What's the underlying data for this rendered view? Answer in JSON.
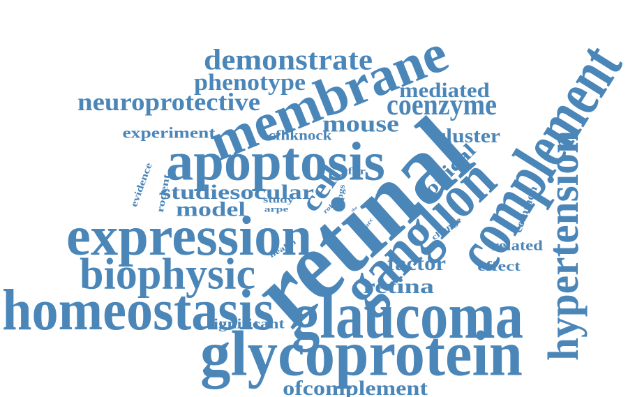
{
  "cloud": {
    "color": "#4b86b9",
    "words": [
      {
        "text": "retinal",
        "weight": 100
      },
      {
        "text": "complement",
        "weight": 88
      },
      {
        "text": "glycoprotein",
        "weight": 84
      },
      {
        "text": "glaucoma",
        "weight": 82
      },
      {
        "text": "homeostasis",
        "weight": 80
      },
      {
        "text": "expression",
        "weight": 76
      },
      {
        "text": "membrane",
        "weight": 72
      },
      {
        "text": "ganglion",
        "weight": 70
      },
      {
        "text": "apoptosis",
        "weight": 68
      },
      {
        "text": "biophysic",
        "weight": 64
      },
      {
        "text": "hypertension",
        "weight": 62
      },
      {
        "text": "demonstrate",
        "weight": 40
      },
      {
        "text": "coenzyme",
        "weight": 40
      },
      {
        "text": "phenotype",
        "weight": 36
      },
      {
        "text": "neuroprotective",
        "weight": 34
      },
      {
        "text": "mediated",
        "weight": 32
      },
      {
        "text": "mouse",
        "weight": 32
      },
      {
        "text": "cell",
        "weight": 34
      },
      {
        "text": "ofcomplement",
        "weight": 30
      },
      {
        "text": "studiesocular",
        "weight": 30
      },
      {
        "text": "model",
        "weight": 30
      },
      {
        "text": "factor",
        "weight": 30
      },
      {
        "text": "retina",
        "weight": 30
      },
      {
        "text": "cluster",
        "weight": 26
      },
      {
        "text": "topical",
        "weight": 26
      },
      {
        "text": "experiment",
        "weight": 22
      },
      {
        "text": "cfhknock",
        "weight": 20
      },
      {
        "text": "related",
        "weight": 20
      },
      {
        "text": "effect",
        "weight": 20
      },
      {
        "text": "significant",
        "weight": 18
      },
      {
        "text": "common",
        "weight": 16
      },
      {
        "text": "evidence",
        "weight": 14
      },
      {
        "text": "rodent",
        "weight": 14
      },
      {
        "text": "study",
        "weight": 12
      },
      {
        "text": "arpe",
        "weight": 12
      },
      {
        "text": "cfhr",
        "weight": 12
      },
      {
        "text": "tpgs",
        "weight": 11
      },
      {
        "text": "change",
        "weight": 11
      },
      {
        "text": "health",
        "weight": 10
      },
      {
        "text": "role",
        "weight": 8
      },
      {
        "text": "darc",
        "weight": 7
      },
      {
        "text": "the",
        "weight": 4
      }
    ]
  }
}
